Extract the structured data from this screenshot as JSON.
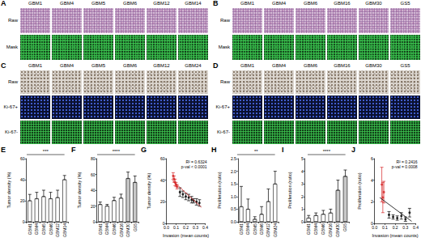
{
  "image_panels": [
    {
      "panel": "A",
      "columns": [
        "GBM1",
        "GBM4",
        "GBM5",
        "GBM6",
        "GBM12",
        "GBM14"
      ],
      "rows": [
        "Raw",
        "Mask"
      ]
    },
    {
      "panel": "B",
      "columns": [
        "GBM1",
        "GBM4",
        "GBM6",
        "GBM16",
        "GBM30",
        "GS5"
      ],
      "rows": [
        "Raw",
        "Mask"
      ]
    },
    {
      "panel": "C",
      "columns": [
        "GBM1",
        "GBM4",
        "GBM5",
        "GBM6",
        "GBM12",
        "GBM24"
      ],
      "rows": [
        "Raw",
        "Ki-67+",
        "Ki-67-"
      ]
    },
    {
      "panel": "D",
      "columns": [
        "GBM1",
        "GBM4",
        "GBM6",
        "GBM16",
        "GBM30",
        "GS5"
      ],
      "rows": [
        "Raw",
        "Ki-67+",
        "Ki-67-"
      ]
    }
  ],
  "chart_data": [
    {
      "panel": "E",
      "type": "bar",
      "ylabel": "Tumor density (%)",
      "categories": [
        "GBM1",
        "GBM4",
        "GBM5",
        "GBM6",
        "GBM12",
        "GBM14"
      ],
      "values": [
        20,
        22,
        24,
        22,
        23,
        40
      ],
      "errors": [
        6,
        6,
        6,
        6,
        7,
        4
      ],
      "colors": [
        "#ffffff",
        "#ffffff",
        "#ffffff",
        "#ffffff",
        "#ffffff",
        "#ffffff"
      ],
      "ylim": [
        0,
        60
      ],
      "yticks": [
        0,
        20,
        40,
        60
      ],
      "annotation": "***"
    },
    {
      "panel": "F",
      "type": "bar",
      "ylabel": "Tumor density (%)",
      "categories": [
        "GBM1",
        "GBM4",
        "GBM6",
        "GBM16",
        "GBM30",
        "GS5"
      ],
      "values": [
        22,
        20,
        27,
        30,
        55,
        50
      ],
      "errors": [
        3,
        2,
        4,
        5,
        8,
        8
      ],
      "colors": [
        "#ffffff",
        "#ffffff",
        "#ffffff",
        "#ffffff",
        "#c8c8c8",
        "#c8c8c8"
      ],
      "ylim": [
        0,
        80
      ],
      "yticks": [
        0,
        20,
        40,
        60,
        80
      ],
      "annotation": "****"
    },
    {
      "panel": "G",
      "type": "scatter",
      "xlabel": "Invasion (mean counts)",
      "ylabel": "Tumor density (%)",
      "series": [
        {
          "color": "#d62728",
          "x": [
            0.07,
            0.08,
            0.09,
            0.1,
            0.11
          ],
          "values": [
            44,
            41,
            38,
            36,
            34
          ],
          "errors": [
            3,
            3,
            3,
            2,
            2
          ]
        },
        {
          "color": "#000000",
          "x": [
            0.14,
            0.17,
            0.2,
            0.23,
            0.26,
            0.28,
            0.31,
            0.34
          ],
          "values": [
            29,
            27,
            25,
            24,
            22,
            21,
            20,
            19
          ],
          "errors": [
            4,
            3,
            3,
            3,
            3,
            2,
            3,
            3
          ]
        }
      ],
      "fit": {
        "color": "#d62728",
        "x": [
          0.06,
          0.36
        ],
        "values": [
          40,
          15
        ]
      },
      "annotations": [
        "R² = 0.6324",
        "p-val < 0.0001"
      ],
      "xlim": [
        0,
        0.4
      ],
      "xticks": [
        {
          "value": 0,
          "label": "0.0"
        },
        0.1,
        0.2,
        0.3,
        0.4
      ],
      "ylim": [
        0,
        60
      ],
      "yticks": [
        0,
        20,
        40,
        60
      ]
    },
    {
      "panel": "H",
      "type": "bar",
      "ylabel": "Proliferation (ratio)",
      "categories": [
        "GBM1",
        "GBM4",
        "GBM5",
        "GBM6",
        "GBM12",
        "GBM24"
      ],
      "values": [
        0.6,
        0.5,
        0.1,
        0.3,
        0.8,
        1.5
      ],
      "errors": [
        0.8,
        0.4,
        0.1,
        0.3,
        0.5,
        0.5
      ],
      "colors": [
        "#ffffff",
        "#ffffff",
        "#ffffff",
        "#ffffff",
        "#ffffff",
        "#ffffff"
      ],
      "ylim": [
        0,
        2.5
      ],
      "yticks": [
        {
          "value": 0,
          "label": "0.0"
        },
        0.5,
        {
          "value": 1,
          "label": "1.0"
        },
        1.5,
        {
          "value": 2,
          "label": "2.0"
        },
        2.5
      ],
      "annotation": "**"
    },
    {
      "panel": "I",
      "type": "bar",
      "ylabel": "Proliferation (ratio)",
      "categories": [
        "GBM1",
        "GBM4",
        "GBM6",
        "GBM16",
        "GBM30",
        "GS5"
      ],
      "values": [
        0.3,
        0.5,
        0.6,
        0.7,
        2.5,
        3.6
      ],
      "errors": [
        0.2,
        0.2,
        0.3,
        0.3,
        0.8,
        0.5
      ],
      "colors": [
        "#ffffff",
        "#ffffff",
        "#ffffff",
        "#ffffff",
        "#c8c8c8",
        "#c8c8c8"
      ],
      "ylim": [
        0,
        5
      ],
      "yticks": [
        0,
        1,
        2,
        3,
        4,
        5
      ],
      "annotation": "****"
    },
    {
      "panel": "J",
      "type": "scatter",
      "xlabel": "Invasion (mean counts)",
      "ylabel": "Proliferation (ratio)",
      "series": [
        {
          "color": "#d62728",
          "x": [
            0.07,
            0.08,
            0.09
          ],
          "values": [
            3.6,
            2.4,
            2.9
          ],
          "errors": [
            1.6,
            1.4,
            1.0
          ]
        },
        {
          "color": "#000000",
          "x": [
            0.14,
            0.18,
            0.22,
            0.26,
            0.3,
            0.34
          ],
          "values": [
            0.8,
            0.6,
            0.5,
            0.7,
            0.4,
            1.0
          ],
          "errors": [
            0.3,
            0.2,
            0.2,
            0.3,
            0.2,
            0.4
          ]
        }
      ],
      "fit": {
        "color": "#000000",
        "x": [
          0.05,
          0.36
        ],
        "values": [
          2.4,
          0.2
        ]
      },
      "annotations": [
        "R² = 0.2416",
        "p-val = 0.0008"
      ],
      "xlim": [
        0,
        0.4
      ],
      "xticks": [
        {
          "value": 0,
          "label": "0.0"
        },
        0.1,
        0.2,
        0.3,
        0.4
      ],
      "ylim": [
        0,
        6
      ],
      "yticks": [
        0,
        2,
        4,
        6
      ]
    }
  ]
}
